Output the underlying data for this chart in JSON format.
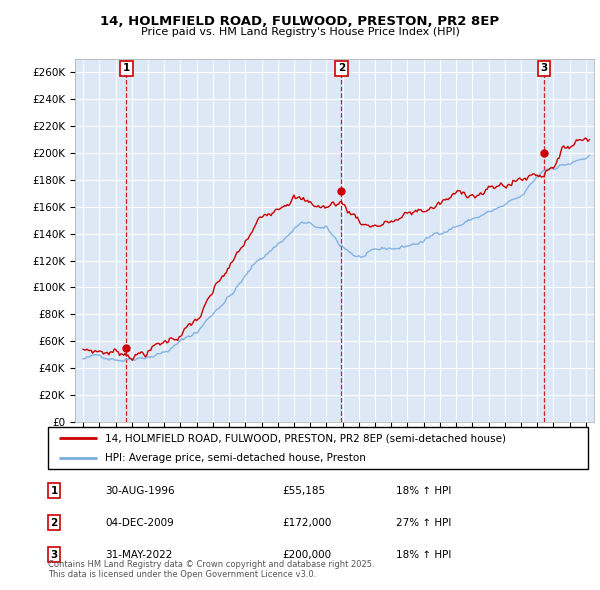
{
  "title_line1": "14, HOLMFIELD ROAD, FULWOOD, PRESTON, PR2 8EP",
  "title_line2": "Price paid vs. HM Land Registry's House Price Index (HPI)",
  "ylabel_ticks": [
    "£0",
    "£20K",
    "£40K",
    "£60K",
    "£80K",
    "£100K",
    "£120K",
    "£140K",
    "£160K",
    "£180K",
    "£200K",
    "£220K",
    "£240K",
    "£260K"
  ],
  "ytick_values": [
    0,
    20000,
    40000,
    60000,
    80000,
    100000,
    120000,
    140000,
    160000,
    180000,
    200000,
    220000,
    240000,
    260000
  ],
  "xlim": [
    1993.5,
    2025.5
  ],
  "ylim": [
    0,
    270000
  ],
  "legend_line1": "14, HOLMFIELD ROAD, FULWOOD, PRESTON, PR2 8EP (semi-detached house)",
  "legend_line2": "HPI: Average price, semi-detached house, Preston",
  "sale1_date": "30-AUG-1996",
  "sale1_price": "£55,185",
  "sale1_hpi": "18% ↑ HPI",
  "sale1_year": 1996.67,
  "sale1_value": 55185,
  "sale2_date": "04-DEC-2009",
  "sale2_price": "£172,000",
  "sale2_hpi": "27% ↑ HPI",
  "sale2_year": 2009.92,
  "sale2_value": 172000,
  "sale3_date": "31-MAY-2022",
  "sale3_price": "£200,000",
  "sale3_hpi": "18% ↑ HPI",
  "sale3_year": 2022.42,
  "sale3_value": 200000,
  "red_color": "#cc0000",
  "blue_color": "#7aade0",
  "bg_color": "#dce8f5",
  "grid_color": "#ffffff",
  "copyright_text": "Contains HM Land Registry data © Crown copyright and database right 2025.\nThis data is licensed under the Open Government Licence v3.0."
}
